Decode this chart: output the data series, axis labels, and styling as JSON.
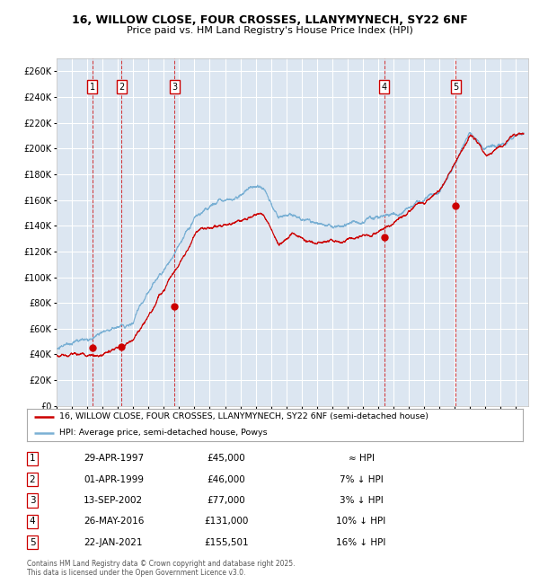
{
  "title": "16, WILLOW CLOSE, FOUR CROSSES, LLANYMYNECH, SY22 6NF",
  "subtitle": "Price paid vs. HM Land Registry's House Price Index (HPI)",
  "background_color": "#dce6f1",
  "plot_bg_color": "#dce6f1",
  "hpi_color": "#7ab0d4",
  "price_color": "#cc0000",
  "grid_color": "#ffffff",
  "ylim": [
    0,
    270000
  ],
  "ytick_step": 20000,
  "sales": [
    {
      "label": "1",
      "date_num": 1997.33,
      "price": 45000
    },
    {
      "label": "2",
      "date_num": 1999.25,
      "price": 46000
    },
    {
      "label": "3",
      "date_num": 2002.71,
      "price": 77000
    },
    {
      "label": "4",
      "date_num": 2016.4,
      "price": 131000
    },
    {
      "label": "5",
      "date_num": 2021.06,
      "price": 155501
    }
  ],
  "table_rows": [
    [
      "1",
      "29-APR-1997",
      "£45,000",
      "≈ HPI"
    ],
    [
      "2",
      "01-APR-1999",
      "£46,000",
      "7% ↓ HPI"
    ],
    [
      "3",
      "13-SEP-2002",
      "£77,000",
      "3% ↓ HPI"
    ],
    [
      "4",
      "26-MAY-2016",
      "£131,000",
      "10% ↓ HPI"
    ],
    [
      "5",
      "22-JAN-2021",
      "£155,501",
      "16% ↓ HPI"
    ]
  ],
  "legend_line1": "16, WILLOW CLOSE, FOUR CROSSES, LLANYMYNECH, SY22 6NF (semi-detached house)",
  "legend_line2": "HPI: Average price, semi-detached house, Powys",
  "footer": "Contains HM Land Registry data © Crown copyright and database right 2025.\nThis data is licensed under the Open Government Licence v3.0."
}
